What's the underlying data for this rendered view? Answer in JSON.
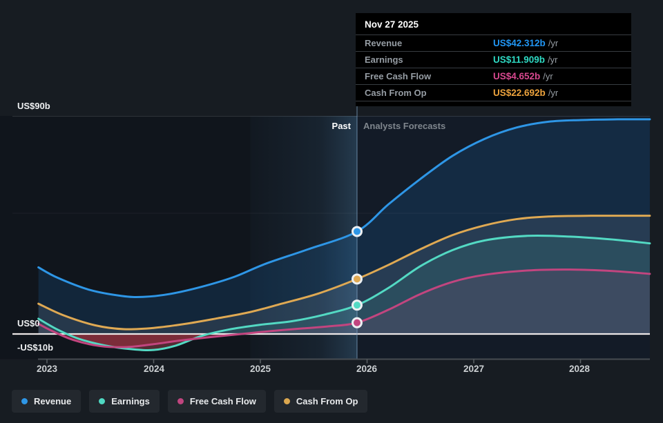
{
  "tooltip": {
    "date": "Nov 27 2025",
    "rows": [
      {
        "label": "Revenue",
        "value": "US$42.312b",
        "suffix": "/yr",
        "color": "#2196f3"
      },
      {
        "label": "Earnings",
        "value": "US$11.909b",
        "suffix": "/yr",
        "color": "#2ed9c3"
      },
      {
        "label": "Free Cash Flow",
        "value": "US$4.652b",
        "suffix": "/yr",
        "color": "#d8488f"
      },
      {
        "label": "Cash From Op",
        "value": "US$22.692b",
        "suffix": "/yr",
        "color": "#eda33d"
      }
    ]
  },
  "plot_labels": {
    "past": "Past",
    "forecasts": "Analysts Forecasts"
  },
  "y_axis": {
    "top": "US$90b",
    "zero": "US$0",
    "bottom": "-US$10b"
  },
  "x_axis": {
    "ticks": [
      "2023",
      "2024",
      "2025",
      "2026",
      "2027",
      "2028"
    ]
  },
  "legend": {
    "items": [
      {
        "label": "Revenue",
        "color": "#2e96e6"
      },
      {
        "label": "Earnings",
        "color": "#4fd8c2"
      },
      {
        "label": "Free Cash Flow",
        "color": "#c0457f"
      },
      {
        "label": "Cash From Op",
        "color": "#dba74f"
      }
    ]
  },
  "chart_data": {
    "type": "area",
    "x_domain": [
      2022.92,
      2028.65
    ],
    "ylim": [
      -10,
      90
    ],
    "y_gridlines": [
      90,
      50,
      0,
      -10
    ],
    "x_ticks": [
      2023,
      2024,
      2025,
      2026,
      2027,
      2028
    ],
    "today": 2025.906,
    "today_date": "Nov 27 2025",
    "band_start": 2024.906,
    "negative_fill": "rgba(165,45,60,0.42)",
    "series": [
      {
        "name": "Revenue",
        "color": "#2e96e6",
        "fill": "rgba(33,130,215,0.16)",
        "marker": 42.312,
        "points": [
          [
            2022.92,
            27.5
          ],
          [
            2023.1,
            23.2
          ],
          [
            2023.4,
            18.2
          ],
          [
            2023.7,
            15.7
          ],
          [
            2023.9,
            15.3
          ],
          [
            2024.15,
            16.5
          ],
          [
            2024.45,
            19.5
          ],
          [
            2024.75,
            23.5
          ],
          [
            2025.05,
            29.0
          ],
          [
            2025.45,
            35.0
          ],
          [
            2025.906,
            42.312
          ],
          [
            2026.2,
            53.5
          ],
          [
            2026.5,
            64.0
          ],
          [
            2026.8,
            73.5
          ],
          [
            2027.1,
            80.5
          ],
          [
            2027.4,
            85.2
          ],
          [
            2027.7,
            87.6
          ],
          [
            2028.0,
            88.3
          ],
          [
            2028.35,
            88.6
          ],
          [
            2028.65,
            88.6
          ]
        ]
      },
      {
        "name": "Cash From Op",
        "color": "#dfa953",
        "fill": "rgba(220,220,225,0.10)",
        "marker": 22.692,
        "points": [
          [
            2022.92,
            12.5
          ],
          [
            2023.15,
            7.8
          ],
          [
            2023.45,
            3.6
          ],
          [
            2023.72,
            2.0
          ],
          [
            2024.0,
            2.5
          ],
          [
            2024.3,
            4.2
          ],
          [
            2024.6,
            6.5
          ],
          [
            2024.9,
            9.0
          ],
          [
            2025.2,
            12.5
          ],
          [
            2025.55,
            16.8
          ],
          [
            2025.906,
            22.692
          ],
          [
            2026.2,
            28.5
          ],
          [
            2026.5,
            35.0
          ],
          [
            2026.8,
            40.8
          ],
          [
            2027.1,
            44.8
          ],
          [
            2027.4,
            47.4
          ],
          [
            2027.7,
            48.5
          ],
          [
            2028.1,
            48.8
          ],
          [
            2028.65,
            48.8
          ]
        ]
      },
      {
        "name": "Earnings",
        "color": "#53d9c3",
        "fill": "rgba(83,217,195,0.11)",
        "marker": 11.909,
        "points": [
          [
            2022.92,
            6.3
          ],
          [
            2023.1,
            1.8
          ],
          [
            2023.3,
            -2.0
          ],
          [
            2023.55,
            -4.8
          ],
          [
            2023.8,
            -6.3
          ],
          [
            2024.0,
            -6.6
          ],
          [
            2024.2,
            -4.9
          ],
          [
            2024.45,
            -0.8
          ],
          [
            2024.7,
            1.8
          ],
          [
            2025.0,
            3.8
          ],
          [
            2025.3,
            5.3
          ],
          [
            2025.6,
            8.0
          ],
          [
            2025.906,
            11.909
          ],
          [
            2026.2,
            19.0
          ],
          [
            2026.5,
            28.0
          ],
          [
            2026.8,
            34.6
          ],
          [
            2027.1,
            38.6
          ],
          [
            2027.5,
            40.5
          ],
          [
            2027.9,
            40.2
          ],
          [
            2028.3,
            39.0
          ],
          [
            2028.65,
            37.4
          ]
        ]
      },
      {
        "name": "Free Cash Flow",
        "color": "#c2457f",
        "fill": "rgba(194,69,127,0.12)",
        "marker": 4.652,
        "points": [
          [
            2022.92,
            4.2
          ],
          [
            2023.05,
            1.2
          ],
          [
            2023.25,
            -2.5
          ],
          [
            2023.5,
            -5.0
          ],
          [
            2023.75,
            -5.4
          ],
          [
            2024.0,
            -4.2
          ],
          [
            2024.25,
            -2.7
          ],
          [
            2024.55,
            -1.2
          ],
          [
            2024.8,
            -0.1
          ],
          [
            2025.1,
            1.2
          ],
          [
            2025.4,
            2.3
          ],
          [
            2025.65,
            3.2
          ],
          [
            2025.906,
            4.652
          ],
          [
            2026.2,
            10.0
          ],
          [
            2026.5,
            16.5
          ],
          [
            2026.8,
            21.5
          ],
          [
            2027.1,
            24.4
          ],
          [
            2027.5,
            26.2
          ],
          [
            2027.9,
            26.6
          ],
          [
            2028.3,
            26.0
          ],
          [
            2028.65,
            24.8
          ]
        ]
      }
    ]
  }
}
